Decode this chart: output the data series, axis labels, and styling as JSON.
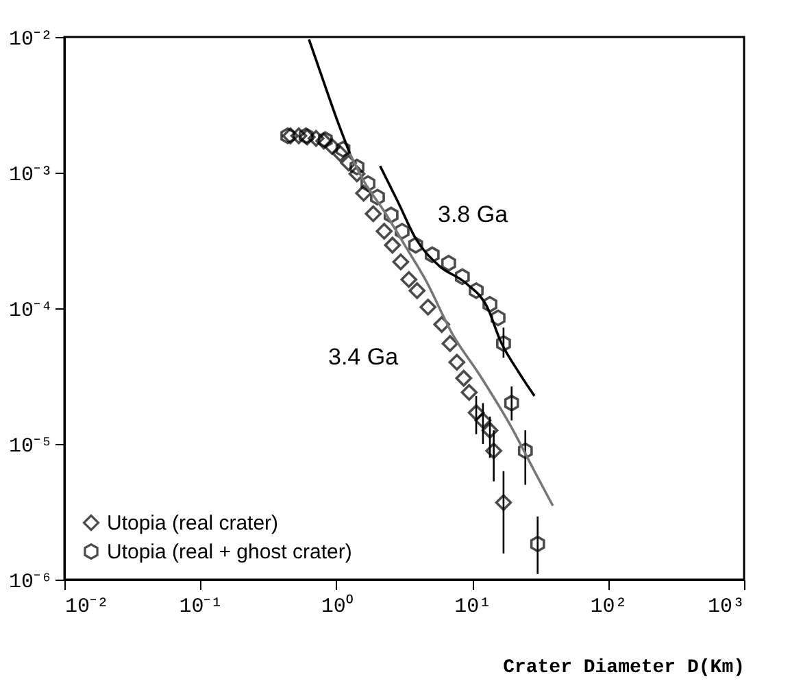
{
  "chart_data": {
    "type": "scatter",
    "xlabel": "Crater Diameter D(Km)",
    "log": "xy",
    "grid": false,
    "legend": "bottom left",
    "xlim": [
      0.01,
      1000
    ],
    "ylim": [
      1e-06,
      0.01
    ],
    "xticks": [
      {
        "value": 0.01,
        "label": "10⁻²"
      },
      {
        "value": 0.1,
        "label": "10⁻¹"
      },
      {
        "value": 1,
        "label": "10⁰"
      },
      {
        "value": 10,
        "label": "10¹"
      },
      {
        "value": 100,
        "label": "10²"
      },
      {
        "value": 1000,
        "label": "10³"
      }
    ],
    "yticks": [
      {
        "value": 1e-06,
        "label": "10⁻⁶"
      },
      {
        "value": 1e-05,
        "label": "10⁻⁵"
      },
      {
        "value": 0.0001,
        "label": "10⁻⁴"
      },
      {
        "value": 0.001,
        "label": "10⁻³"
      },
      {
        "value": 0.01,
        "label": "10⁻²"
      }
    ],
    "annotations": [
      "3.8 Ga",
      "3.4 Ga"
    ],
    "series": [
      {
        "name": "Utopia (real crater)",
        "marker": "diamond",
        "color": "#000000",
        "x": [
          0.46,
          0.53,
          0.61,
          0.71,
          0.81,
          0.93,
          1.07,
          1.23,
          1.42,
          1.59,
          1.87,
          2.25,
          2.59,
          2.98,
          3.42,
          3.93,
          4.73,
          5.97,
          6.87,
          7.71,
          8.66,
          9.5,
          10.7,
          12.0,
          13.5,
          14.4,
          17.0
        ],
        "values": [
          0.00187,
          0.00187,
          0.00183,
          0.00179,
          0.00171,
          0.00156,
          0.00138,
          0.00118,
          0.00098,
          0.000705,
          0.000498,
          0.00037,
          0.000292,
          0.00022,
          0.000163,
          0.000135,
          0.000102,
          7.6e-05,
          5.5e-05,
          4e-05,
          3.05e-05,
          2.4e-05,
          1.7e-05,
          1.49e-05,
          1.26e-05,
          8.9e-06,
          3.7e-06
        ],
        "errors": [
          null,
          null,
          null,
          null,
          null,
          null,
          null,
          null,
          null,
          null,
          null,
          null,
          null,
          null,
          null,
          null,
          null,
          null,
          null,
          null,
          null,
          null,
          [
            1.18e-05,
            2.26e-05
          ],
          [
            1e-05,
            2e-05
          ],
          [
            7.9e-06,
            1.59e-05
          ],
          [
            5.3e-06,
            1.26e-05
          ],
          [
            1.56e-06,
            6.3e-06
          ]
        ]
      },
      {
        "name": "Utopia (real + ghost crater)",
        "color": "#000000",
        "x": [
          0.44,
          0.6,
          0.83,
          1.12,
          1.42,
          1.71,
          2.01,
          2.53,
          3.05,
          3.84,
          5.08,
          6.71,
          8.46,
          10.7,
          13.5,
          15.5,
          17.0,
          19.5,
          24.6,
          30.3
        ],
        "values": [
          0.00187,
          0.00187,
          0.00175,
          0.00149,
          0.0011,
          0.00083,
          0.00066,
          0.000487,
          0.00037,
          0.000292,
          0.000248,
          0.000215,
          0.000171,
          0.000135,
          0.000107,
          8.5e-05,
          5.5e-05,
          2e-05,
          8.9e-06,
          1.83e-06
        ],
        "errors": [
          null,
          null,
          null,
          null,
          null,
          null,
          null,
          null,
          null,
          null,
          null,
          null,
          null,
          null,
          null,
          null,
          [
            4.33e-05,
            7.2e-05
          ],
          [
            1.49e-05,
            2.65e-05
          ],
          [
            5e-06,
            1.26e-05
          ],
          [
            1.1e-06,
            2.92e-06
          ]
        ]
      },
      {
        "type": "line",
        "color": "#000000",
        "x": [
          0.63,
          0.79,
          1.0,
          1.26
        ],
        "values": [
          0.0096,
          0.00498,
          0.00254,
          0.00138
        ]
      },
      {
        "type": "line",
        "color": "#777777",
        "x": [
          1.26,
          1.59,
          2.25,
          3.19,
          4.52,
          7.19,
          11.4,
          19.5,
          28.7,
          39.2
        ],
        "values": [
          0.00138,
          0.00087,
          0.00052,
          0.000292,
          0.000163,
          6.4e-05,
          3.2e-05,
          1.32e-05,
          6.3e-06,
          3.5e-06
        ]
      },
      {
        "type": "line",
        "color": "#000000",
        "x": [
          2.1,
          2.84,
          3.84,
          5.7,
          9.07,
          12.9,
          16.2,
          21.9,
          28.7
        ],
        "values": [
          0.00112,
          0.00061,
          0.000327,
          0.000206,
          0.000152,
          0.000102,
          5.7e-05,
          3.4e-05,
          2.26e-05
        ]
      }
    ]
  }
}
